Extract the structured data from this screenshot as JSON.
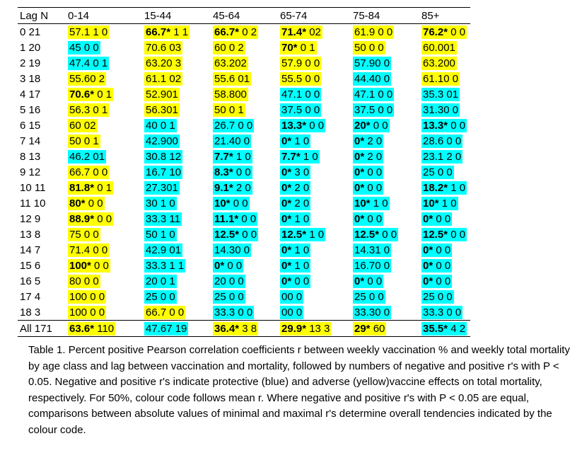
{
  "table": {
    "header": [
      "Lag N",
      "0-14",
      "15-44",
      "45-64",
      "65-74",
      "75-84",
      "85+"
    ],
    "rows": [
      {
        "lag": "0 21",
        "cells": [
          {
            "p": "57.1",
            "n": "1 0",
            "bg": "#ffff00"
          },
          {
            "p": "66.7*",
            "n": "1 1",
            "bg": "#ffff00"
          },
          {
            "p": "66.7*",
            "n": "0 2",
            "bg": "#ffff00"
          },
          {
            "p": "71.4*",
            "n": "02",
            "bg": "#ffff00"
          },
          {
            "p": "61.9",
            "n": "0 0",
            "bg": "#ffff00"
          },
          {
            "p": "76.2*",
            "n": "0 0",
            "bg": "#ffff00"
          }
        ]
      },
      {
        "lag": "1 20",
        "cells": [
          {
            "p": "45",
            "n": "0 0",
            "bg": "#00ffff"
          },
          {
            "p": "70.6",
            "n": "03",
            "bg": "#ffff00"
          },
          {
            "p": "60",
            "n": "0 2",
            "bg": "#ffff00"
          },
          {
            "p": "70*",
            "n": "0 1",
            "bg": "#ffff00"
          },
          {
            "p": "50",
            "n": "0 0",
            "bg": "#ffff00"
          },
          {
            "p": "60.001",
            "n": "",
            "bg": "#ffff00"
          }
        ]
      },
      {
        "lag": "2 19",
        "cells": [
          {
            "p": "47.4",
            "n": "0 1",
            "bg": "#00ffff"
          },
          {
            "p": "63.20",
            "n": "3",
            "bg": "#ffff00"
          },
          {
            "p": "63.202",
            "n": "",
            "bg": "#ffff00"
          },
          {
            "p": "57.9",
            "n": "0 0",
            "bg": "#ffff00"
          },
          {
            "p": "57.90",
            "n": "0",
            "bg": "#00ffff"
          },
          {
            "p": "63.200",
            "n": "",
            "bg": "#ffff00"
          }
        ]
      },
      {
        "lag": "3 18",
        "cells": [
          {
            "p": "55.60",
            "n": "2",
            "bg": "#ffff00"
          },
          {
            "p": "61.1",
            "n": "02",
            "bg": "#ffff00"
          },
          {
            "p": "55.6",
            "n": "01",
            "bg": "#ffff00"
          },
          {
            "p": "55.5",
            "n": "0 0",
            "bg": "#ffff00"
          },
          {
            "p": "44.40",
            "n": "0",
            "bg": "#00ffff"
          },
          {
            "p": "61.10",
            "n": "0",
            "bg": "#ffff00"
          }
        ]
      },
      {
        "lag": "4 17",
        "cells": [
          {
            "p": "70.6*",
            "n": "0 1",
            "bg": "#ffff00"
          },
          {
            "p": "52.901",
            "n": "",
            "bg": "#ffff00"
          },
          {
            "p": "58.800",
            "n": "",
            "bg": "#ffff00"
          },
          {
            "p": "47.1",
            "n": "0 0",
            "bg": "#00ffff"
          },
          {
            "p": "47.1",
            "n": "0 0",
            "bg": "#00ffff"
          },
          {
            "p": "35.3",
            "n": "01",
            "bg": "#00ffff"
          }
        ]
      },
      {
        "lag": "5 16",
        "cells": [
          {
            "p": "56.3",
            "n": "0 1",
            "bg": "#ffff00"
          },
          {
            "p": "56.301",
            "n": "",
            "bg": "#ffff00"
          },
          {
            "p": "50",
            "n": "0 1",
            "bg": "#ffff00"
          },
          {
            "p": "37.5",
            "n": "0 0",
            "bg": "#00ffff"
          },
          {
            "p": "37.5",
            "n": "0 0",
            "bg": "#00ffff"
          },
          {
            "p": "31.30",
            "n": "0",
            "bg": "#00ffff"
          }
        ]
      },
      {
        "lag": "6 15",
        "cells": [
          {
            "p": "60",
            "n": "02",
            "bg": "#ffff00"
          },
          {
            "p": "40",
            "n": "0 1",
            "bg": "#00ffff"
          },
          {
            "p": "26.7",
            "n": "0 0",
            "bg": "#00ffff"
          },
          {
            "p": "13.3*",
            "n": "0 0",
            "bg": "#00ffff"
          },
          {
            "p": "20*",
            "n": "0 0",
            "bg": "#00ffff"
          },
          {
            "p": "13.3*",
            "n": "0 0",
            "bg": "#00ffff"
          }
        ]
      },
      {
        "lag": "7 14",
        "cells": [
          {
            "p": "50",
            "n": "0 1",
            "bg": "#ffff00"
          },
          {
            "p": "42.900",
            "n": "",
            "bg": "#00ffff"
          },
          {
            "p": "21.40",
            "n": "0",
            "bg": "#00ffff"
          },
          {
            "p": "0*",
            "n": "1 0",
            "bg": "#00ffff"
          },
          {
            "p": "0*",
            "n": "2 0",
            "bg": "#00ffff"
          },
          {
            "p": "28.6",
            "n": "0 0",
            "bg": "#00ffff"
          }
        ]
      },
      {
        "lag": "8 13",
        "cells": [
          {
            "p": "46.2",
            "n": "01",
            "bg": "#00ffff"
          },
          {
            "p": "30.8",
            "n": "12",
            "bg": "#00ffff"
          },
          {
            "p": "7.7*",
            "n": "1 0",
            "bg": "#00ffff"
          },
          {
            "p": "7.7*",
            "n": "1 0",
            "bg": "#00ffff"
          },
          {
            "p": "0*",
            "n": "2 0",
            "bg": "#00ffff"
          },
          {
            "p": "23.1",
            "n": "2 0",
            "bg": "#00ffff"
          }
        ]
      },
      {
        "lag": "9 12",
        "cells": [
          {
            "p": "66.7",
            "n": "0 0",
            "bg": "#ffff00"
          },
          {
            "p": "16.7",
            "n": "10",
            "bg": "#00ffff"
          },
          {
            "p": "8.3*",
            "n": "0 0",
            "bg": "#00ffff"
          },
          {
            "p": "0*",
            "n": "3 0",
            "bg": "#00ffff"
          },
          {
            "p": "0*",
            "n": "0 0",
            "bg": "#00ffff"
          },
          {
            "p": "25",
            "n": "0 0",
            "bg": "#00ffff"
          }
        ]
      },
      {
        "lag": "10 11",
        "cells": [
          {
            "p": "81.8*",
            "n": "0 1",
            "bg": "#ffff00"
          },
          {
            "p": "27.301",
            "n": "",
            "bg": "#00ffff"
          },
          {
            "p": "9.1*",
            "n": "2 0",
            "bg": "#00ffff"
          },
          {
            "p": "0*",
            "n": "2 0",
            "bg": "#00ffff"
          },
          {
            "p": "0*",
            "n": "0 0",
            "bg": "#00ffff"
          },
          {
            "p": "18.2*",
            "n": "1 0",
            "bg": "#00ffff"
          }
        ]
      },
      {
        "lag": "11 10",
        "cells": [
          {
            "p": "80*",
            "n": "0 0",
            "bg": "#ffff00"
          },
          {
            "p": "30",
            "n": "1 0",
            "bg": "#00ffff"
          },
          {
            "p": "10*",
            "n": "0 0",
            "bg": "#00ffff"
          },
          {
            "p": "0*",
            "n": "2 0",
            "bg": "#00ffff"
          },
          {
            "p": "10*",
            "n": "1 0",
            "bg": "#00ffff"
          },
          {
            "p": "10*",
            "n": "1 0",
            "bg": "#00ffff"
          }
        ]
      },
      {
        "lag": "12 9",
        "cells": [
          {
            "p": "88.9*",
            "n": "0 0",
            "bg": "#ffff00"
          },
          {
            "p": "33.3",
            "n": "11",
            "bg": "#00ffff"
          },
          {
            "p": "11.1*",
            "n": "0 0",
            "bg": "#00ffff"
          },
          {
            "p": "0*",
            "n": "1 0",
            "bg": "#00ffff"
          },
          {
            "p": "0*",
            "n": "0 0",
            "bg": "#00ffff"
          },
          {
            "p": "0*",
            "n": "0 0",
            "bg": "#00ffff"
          }
        ]
      },
      {
        "lag": "13 8",
        "cells": [
          {
            "p": "75",
            "n": "0 0",
            "bg": "#ffff00"
          },
          {
            "p": "50",
            "n": "1 0",
            "bg": "#00ffff"
          },
          {
            "p": "12.5*",
            "n": "0 0",
            "bg": "#00ffff"
          },
          {
            "p": "12.5*",
            "n": "1 0",
            "bg": "#00ffff"
          },
          {
            "p": "12.5*",
            "n": "0 0",
            "bg": "#00ffff"
          },
          {
            "p": "12.5*",
            "n": "0 0",
            "bg": "#00ffff"
          }
        ]
      },
      {
        "lag": "14 7",
        "cells": [
          {
            "p": "71.4",
            "n": "0 0",
            "bg": "#ffff00"
          },
          {
            "p": "42.9",
            "n": "01",
            "bg": "#00ffff"
          },
          {
            "p": "14.30",
            "n": "0",
            "bg": "#00ffff"
          },
          {
            "p": "0*",
            "n": "1 0",
            "bg": "#00ffff"
          },
          {
            "p": "14.31",
            "n": "0",
            "bg": "#00ffff"
          },
          {
            "p": "0*",
            "n": "0 0",
            "bg": "#00ffff"
          }
        ]
      },
      {
        "lag": "15 6",
        "cells": [
          {
            "p": "100*",
            "n": "0 0",
            "bg": "#ffff00"
          },
          {
            "p": "33.3",
            "n": "1 1",
            "bg": "#00ffff"
          },
          {
            "p": "0*",
            "n": "0 0",
            "bg": "#00ffff"
          },
          {
            "p": "0*",
            "n": "1 0",
            "bg": "#00ffff"
          },
          {
            "p": "16.70",
            "n": "0",
            "bg": "#00ffff"
          },
          {
            "p": "0*",
            "n": "0 0",
            "bg": "#00ffff"
          }
        ]
      },
      {
        "lag": "16 5",
        "cells": [
          {
            "p": "80",
            "n": "0 0",
            "bg": "#ffff00"
          },
          {
            "p": "20",
            "n": "0 1",
            "bg": "#00ffff"
          },
          {
            "p": "20",
            "n": "0 0",
            "bg": "#00ffff"
          },
          {
            "p": "0*",
            "n": "0 0",
            "bg": "#00ffff"
          },
          {
            "p": "0*",
            "n": "0 0",
            "bg": "#00ffff"
          },
          {
            "p": "0*",
            "n": "0 0",
            "bg": "#00ffff"
          }
        ]
      },
      {
        "lag": "17 4",
        "cells": [
          {
            "p": "100",
            "n": "0 0",
            "bg": "#ffff00"
          },
          {
            "p": "25",
            "n": "0 0",
            "bg": "#00ffff"
          },
          {
            "p": "25",
            "n": "0 0",
            "bg": "#00ffff"
          },
          {
            "p": "00",
            "n": "0",
            "bg": "#00ffff"
          },
          {
            "p": "25",
            "n": "0 0",
            "bg": "#00ffff"
          },
          {
            "p": "25",
            "n": "0 0",
            "bg": "#00ffff"
          }
        ]
      },
      {
        "lag": "18 3",
        "cells": [
          {
            "p": "100",
            "n": "0 0",
            "bg": "#ffff00"
          },
          {
            "p": "66.7",
            "n": "0 0",
            "bg": "#ffff00"
          },
          {
            "p": "33.3",
            "n": "0 0",
            "bg": "#00ffff"
          },
          {
            "p": "00",
            "n": "0",
            "bg": "#00ffff"
          },
          {
            "p": "33.30",
            "n": "0",
            "bg": "#00ffff"
          },
          {
            "p": "33.3",
            "n": "0 0",
            "bg": "#00ffff"
          }
        ]
      },
      {
        "lag": "All 171",
        "cells": [
          {
            "p": "63.6*",
            "n": "110",
            "bg": "#ffff00"
          },
          {
            "p": "47.67",
            "n": "19",
            "bg": "#00ffff"
          },
          {
            "p": "36.4*",
            "n": "3 8",
            "bg": "#ffff00"
          },
          {
            "p": "29.9*",
            "n": "13 3",
            "bg": "#ffff00"
          },
          {
            "p": "29*",
            "n": "60",
            "bg": "#ffff00"
          },
          {
            "p": "35.5*",
            "n": "4 2",
            "bg": "#00ffff"
          }
        ]
      }
    ]
  },
  "caption": "Table 1. Percent positive Pearson correlation coefficients r between weekly vaccination % and weekly total mortality by age class and lag between vaccination and mortality, followed by numbers of negative and positive r's with P < 0.05. Negative and positive r's indicate protective (blue) and adverse (yellow)vaccine effects on total mortality, respectively.  For 50%, colour code follows mean r. Where negative and positive r's with P < 0.05 are equal, comparisons between absolute values of minimal and maximal r's determine overall tendencies indicated by the colour code."
}
